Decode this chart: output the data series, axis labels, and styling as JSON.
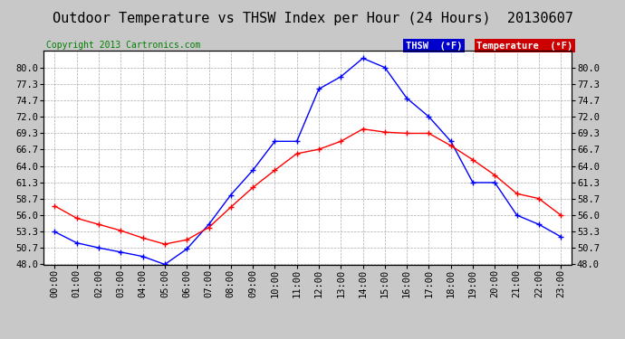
{
  "title": "Outdoor Temperature vs THSW Index per Hour (24 Hours)  20130607",
  "copyright": "Copyright 2013 Cartronics.com",
  "hours": [
    "00:00",
    "01:00",
    "02:00",
    "03:00",
    "04:00",
    "05:00",
    "06:00",
    "07:00",
    "08:00",
    "09:00",
    "10:00",
    "11:00",
    "12:00",
    "13:00",
    "14:00",
    "15:00",
    "16:00",
    "17:00",
    "18:00",
    "19:00",
    "20:00",
    "21:00",
    "22:00",
    "23:00"
  ],
  "thsw": [
    53.3,
    51.5,
    50.7,
    50.0,
    49.3,
    48.0,
    50.5,
    54.5,
    59.3,
    63.3,
    68.0,
    68.0,
    76.5,
    78.5,
    81.5,
    80.0,
    75.0,
    72.0,
    68.0,
    61.3,
    61.3,
    56.0,
    54.5,
    52.5
  ],
  "temperature": [
    57.5,
    55.5,
    54.5,
    53.5,
    52.3,
    51.3,
    52.0,
    54.0,
    57.3,
    60.5,
    63.3,
    66.0,
    66.7,
    68.0,
    70.0,
    69.5,
    69.3,
    69.3,
    67.3,
    65.0,
    62.5,
    59.5,
    58.7,
    56.0
  ],
  "thsw_color": "#0000ff",
  "temp_color": "#ff0000",
  "background_color": "#c8c8c8",
  "plot_bg_color": "#ffffff",
  "grid_color": "#aaaaaa",
  "ylim": [
    48.0,
    82.7
  ],
  "yticks": [
    48.0,
    50.7,
    53.3,
    56.0,
    58.7,
    61.3,
    64.0,
    66.7,
    69.3,
    72.0,
    74.7,
    77.3,
    80.0
  ],
  "legend_thsw_bg": "#0000cc",
  "legend_temp_bg": "#cc0000",
  "title_fontsize": 11,
  "copyright_fontsize": 7,
  "tick_fontsize": 7.5,
  "legend_fontsize": 7.5
}
